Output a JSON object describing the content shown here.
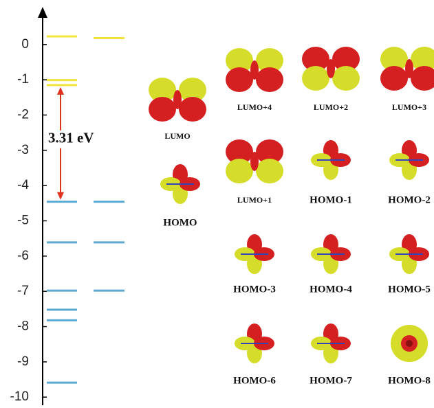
{
  "chart_data": {
    "type": "energy-levels",
    "ylim": [
      -10.23,
      0.97
    ],
    "yticks": [
      0,
      -1,
      -2,
      -3,
      -4,
      -5,
      -6,
      -7,
      -8,
      -9,
      -10
    ],
    "series": [
      {
        "values": [
          0.23,
          -1.01,
          -1.15,
          -4.46,
          -5.61,
          -6.98,
          -7.52,
          -7.82,
          -9.59
        ],
        "colors": [
          "#f2e33a",
          "#f2e33a",
          "#f2e33a",
          "#5aaad2",
          "#5aaad2",
          "#5aaad2",
          "#5aaad2",
          "#5aaad2",
          "#5aaad2"
        ]
      },
      {
        "values": [
          0.18,
          -4.46,
          -5.61,
          -6.98
        ],
        "colors": [
          "#f2e33a",
          "#5aaad2",
          "#5aaad2",
          "#5aaad2"
        ]
      }
    ],
    "gap": {
      "text": "3.31 eV",
      "from": -1.15,
      "to": -4.46,
      "color": "#e0301e"
    }
  },
  "orbitals": [
    "LUMO",
    "HOMO",
    "LUMO+4",
    "LUMO+2",
    "LUMO+3",
    "LUMO+1",
    "HOMO-1",
    "HOMO-2",
    "HOMO-3",
    "HOMO-4",
    "HOMO-5",
    "HOMO-6",
    "HOMO-7",
    "HOMO-8"
  ]
}
